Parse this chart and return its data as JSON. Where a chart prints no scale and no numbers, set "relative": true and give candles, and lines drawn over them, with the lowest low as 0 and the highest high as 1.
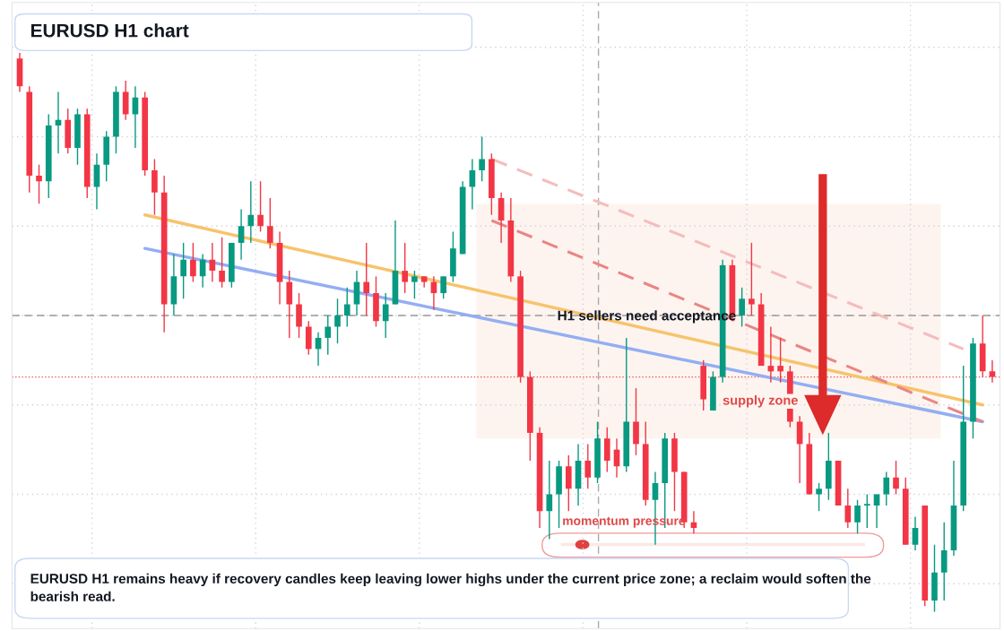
{
  "chart_data": {
    "type": "candlestick",
    "title": "EURUSD H1 chart",
    "relative": true,
    "grid": true,
    "categories": [
      null,
      null,
      null,
      null,
      null,
      null,
      null,
      null,
      null,
      null,
      null,
      null,
      null,
      null,
      null,
      null,
      null,
      null,
      null,
      null,
      null,
      null,
      null,
      null,
      null,
      null,
      null,
      null,
      null,
      null,
      null,
      null,
      null,
      null,
      null,
      null,
      null,
      null,
      null,
      null,
      null,
      null,
      null,
      null,
      null,
      null,
      null,
      null,
      null,
      null,
      null,
      null,
      null,
      null,
      null,
      null,
      null,
      null,
      null,
      null,
      null,
      null,
      null,
      null,
      null,
      null,
      null,
      null,
      null,
      null,
      null,
      null,
      null,
      null,
      null,
      null,
      null,
      null,
      null,
      null,
      null,
      null,
      null,
      null,
      null,
      null,
      null,
      null,
      null,
      null,
      null,
      null,
      null,
      null,
      null,
      null,
      null,
      null,
      null,
      null,
      null,
      null
    ],
    "ohlc": [
      [
        0.99,
        1.0,
        0.93,
        0.94
      ],
      [
        0.93,
        0.94,
        0.75,
        0.78
      ],
      [
        0.78,
        0.8,
        0.73,
        0.77
      ],
      [
        0.77,
        0.89,
        0.74,
        0.87
      ],
      [
        0.87,
        0.93,
        0.82,
        0.88
      ],
      [
        0.88,
        0.9,
        0.82,
        0.83
      ],
      [
        0.83,
        0.9,
        0.8,
        0.89
      ],
      [
        0.89,
        0.9,
        0.74,
        0.76
      ],
      [
        0.76,
        0.82,
        0.72,
        0.8
      ],
      [
        0.8,
        0.86,
        0.77,
        0.85
      ],
      [
        0.85,
        0.94,
        0.82,
        0.93
      ],
      [
        0.93,
        0.95,
        0.88,
        0.89
      ],
      [
        0.89,
        0.94,
        0.83,
        0.92
      ],
      [
        0.92,
        0.93,
        0.78,
        0.79
      ],
      [
        0.79,
        0.81,
        0.71,
        0.75
      ],
      [
        0.75,
        0.78,
        0.5,
        0.55
      ],
      [
        0.55,
        0.64,
        0.53,
        0.6
      ],
      [
        0.6,
        0.66,
        0.56,
        0.63
      ],
      [
        0.63,
        0.66,
        0.59,
        0.6
      ],
      [
        0.6,
        0.64,
        0.58,
        0.63
      ],
      [
        0.63,
        0.66,
        0.59,
        0.61
      ],
      [
        0.61,
        0.67,
        0.58,
        0.59
      ],
      [
        0.59,
        0.66,
        0.58,
        0.66
      ],
      [
        0.66,
        0.72,
        0.63,
        0.69
      ],
      [
        0.69,
        0.77,
        0.66,
        0.71
      ],
      [
        0.71,
        0.77,
        0.68,
        0.69
      ],
      [
        0.69,
        0.74,
        0.65,
        0.66
      ],
      [
        0.66,
        0.68,
        0.55,
        0.59
      ],
      [
        0.59,
        0.61,
        0.49,
        0.55
      ],
      [
        0.55,
        0.57,
        0.49,
        0.51
      ],
      [
        0.51,
        0.52,
        0.46,
        0.47
      ],
      [
        0.47,
        0.5,
        0.44,
        0.49
      ],
      [
        0.49,
        0.53,
        0.46,
        0.51
      ],
      [
        0.51,
        0.56,
        0.48,
        0.53
      ],
      [
        0.53,
        0.58,
        0.51,
        0.55
      ],
      [
        0.55,
        0.61,
        0.53,
        0.59
      ],
      [
        0.59,
        0.66,
        0.53,
        0.57
      ],
      [
        0.57,
        0.6,
        0.51,
        0.52
      ],
      [
        0.52,
        0.57,
        0.49,
        0.55
      ],
      [
        0.55,
        0.7,
        0.55,
        0.61
      ],
      [
        0.61,
        0.66,
        0.57,
        0.59
      ],
      [
        0.59,
        0.61,
        0.56,
        0.6
      ],
      [
        0.6,
        0.6,
        0.58,
        0.59
      ],
      [
        0.59,
        0.6,
        0.54,
        0.57
      ],
      [
        0.57,
        0.6,
        0.56,
        0.6
      ],
      [
        0.6,
        0.68,
        0.59,
        0.65
      ],
      [
        0.64,
        0.77,
        0.64,
        0.76
      ],
      [
        0.76,
        0.81,
        0.72,
        0.79
      ],
      [
        0.79,
        0.85,
        0.77,
        0.81
      ],
      [
        0.81,
        0.82,
        0.71,
        0.74
      ],
      [
        0.74,
        0.75,
        0.66,
        0.7
      ],
      [
        0.7,
        0.74,
        0.59,
        0.6
      ],
      [
        0.6,
        0.61,
        0.41,
        0.42
      ],
      [
        0.42,
        0.43,
        0.27,
        0.32
      ],
      [
        0.32,
        0.33,
        0.15,
        0.18
      ],
      [
        0.18,
        0.27,
        0.13,
        0.21
      ],
      [
        0.21,
        0.27,
        0.15,
        0.26
      ],
      [
        0.26,
        0.28,
        0.18,
        0.22
      ],
      [
        0.22,
        0.3,
        0.19,
        0.27
      ],
      [
        0.27,
        0.3,
        0.22,
        0.24
      ],
      [
        0.24,
        0.34,
        0.23,
        0.31
      ],
      [
        0.31,
        0.33,
        0.25,
        0.27
      ],
      [
        0.29,
        0.31,
        0.24,
        0.26
      ],
      [
        0.26,
        0.49,
        0.25,
        0.34
      ],
      [
        0.34,
        0.4,
        0.28,
        0.3
      ],
      [
        0.3,
        0.34,
        0.19,
        0.2
      ],
      [
        0.2,
        0.25,
        0.12,
        0.23
      ],
      [
        0.23,
        0.32,
        0.15,
        0.31
      ],
      [
        0.31,
        0.32,
        0.18,
        0.25
      ],
      [
        0.25,
        0.25,
        0.15,
        0.16
      ],
      [
        0.16,
        0.18,
        0.14,
        0.15
      ],
      [
        0.44,
        0.45,
        0.36,
        0.38
      ],
      [
        0.36,
        0.43,
        0.36,
        0.42
      ],
      [
        0.42,
        0.63,
        0.41,
        0.62
      ],
      [
        0.62,
        0.63,
        0.52,
        0.53
      ],
      [
        0.53,
        0.58,
        0.51,
        0.56
      ],
      [
        0.56,
        0.66,
        0.53,
        0.55
      ],
      [
        0.55,
        0.57,
        0.44,
        0.44
      ],
      [
        0.44,
        0.51,
        0.41,
        0.43
      ],
      [
        0.44,
        0.49,
        0.41,
        0.43
      ],
      [
        0.43,
        0.44,
        0.33,
        0.34
      ],
      [
        0.34,
        0.35,
        0.23,
        0.3
      ],
      [
        0.3,
        0.32,
        0.21,
        0.21
      ],
      [
        0.21,
        0.23,
        0.18,
        0.22
      ],
      [
        0.22,
        0.32,
        0.2,
        0.27
      ],
      [
        0.27,
        0.27,
        0.19,
        0.19
      ],
      [
        0.19,
        0.22,
        0.15,
        0.16
      ],
      [
        0.16,
        0.2,
        0.14,
        0.19
      ],
      [
        0.19,
        0.21,
        0.15,
        0.19
      ],
      [
        0.19,
        0.21,
        0.15,
        0.21
      ],
      [
        0.21,
        0.25,
        0.19,
        0.24
      ],
      [
        0.24,
        0.27,
        0.21,
        0.22
      ],
      [
        0.22,
        0.24,
        0.12,
        0.12
      ],
      [
        0.12,
        0.17,
        0.11,
        0.15
      ],
      [
        0.19,
        0.19,
        0.01,
        0.02
      ],
      [
        0.02,
        0.12,
        0.0,
        0.07
      ],
      [
        0.07,
        0.16,
        0.02,
        0.11
      ],
      [
        0.11,
        0.27,
        0.1,
        0.19
      ],
      [
        0.19,
        0.44,
        0.18,
        0.34
      ],
      [
        0.34,
        0.49,
        0.31,
        0.48
      ],
      [
        0.48,
        0.53,
        0.42,
        0.43
      ],
      [
        0.43,
        0.45,
        0.41,
        0.42
      ]
    ],
    "series": [
      {
        "type": "line",
        "values": [
          null,
          null,
          null,
          null,
          null,
          null,
          null,
          null,
          null,
          null,
          null,
          null,
          null,
          0.71,
          null,
          null,
          null,
          null,
          null,
          null,
          null,
          null,
          null,
          null,
          null,
          null,
          null,
          null,
          null,
          null,
          null,
          null,
          null,
          null,
          null,
          null,
          null,
          null,
          null,
          null,
          null,
          null,
          null,
          null,
          null,
          null,
          null,
          null,
          null,
          null,
          null,
          null,
          null,
          null,
          null,
          null,
          null,
          null,
          null,
          null,
          null,
          null,
          null,
          null,
          null,
          null,
          null,
          null,
          null,
          null,
          null,
          null,
          null,
          null,
          null,
          null,
          null,
          null,
          null,
          null,
          null,
          null,
          null,
          null,
          null,
          null,
          null,
          null,
          null,
          null,
          null,
          null,
          null,
          null,
          null,
          null,
          null,
          null,
          null,
          null,
          0.37,
          null
        ],
        "color": "#f7c36b",
        "line_style": "solid"
      },
      {
        "type": "line",
        "values": [
          null,
          null,
          null,
          null,
          null,
          null,
          null,
          null,
          null,
          null,
          null,
          null,
          null,
          0.65,
          null,
          null,
          null,
          null,
          null,
          null,
          null,
          null,
          null,
          null,
          null,
          null,
          null,
          null,
          null,
          null,
          null,
          null,
          null,
          null,
          null,
          null,
          null,
          null,
          null,
          null,
          null,
          null,
          null,
          null,
          null,
          null,
          null,
          null,
          null,
          null,
          null,
          null,
          null,
          null,
          null,
          null,
          null,
          null,
          null,
          null,
          null,
          null,
          null,
          null,
          null,
          null,
          null,
          null,
          null,
          null,
          null,
          null,
          null,
          null,
          null,
          null,
          null,
          null,
          null,
          null,
          null,
          null,
          null,
          null,
          null,
          null,
          null,
          null,
          null,
          null,
          null,
          null,
          null,
          null,
          null,
          null,
          null,
          null,
          null,
          null,
          0.34,
          null
        ],
        "color": "#93aef3",
        "line_style": "solid"
      },
      {
        "type": "line",
        "values": [
          null,
          null,
          null,
          null,
          null,
          null,
          null,
          null,
          null,
          null,
          null,
          null,
          null,
          null,
          null,
          null,
          null,
          null,
          null,
          null,
          null,
          null,
          null,
          null,
          null,
          null,
          null,
          null,
          null,
          null,
          null,
          null,
          null,
          null,
          null,
          null,
          null,
          null,
          null,
          null,
          null,
          null,
          null,
          null,
          null,
          null,
          null,
          null,
          null,
          0.7,
          null,
          null,
          null,
          null,
          null,
          null,
          null,
          null,
          null,
          null,
          null,
          null,
          null,
          null,
          null,
          null,
          null,
          null,
          null,
          null,
          null,
          null,
          null,
          null,
          null,
          null,
          null,
          null,
          null,
          null,
          null,
          null,
          null,
          null,
          null,
          null,
          null,
          null,
          null,
          null,
          null,
          null,
          null,
          null,
          null,
          null,
          null,
          null,
          null,
          null,
          0.34,
          null
        ],
        "color": "#ea8585",
        "line_style": "dashed"
      },
      {
        "type": "line",
        "values": [
          null,
          null,
          null,
          null,
          null,
          null,
          null,
          null,
          null,
          null,
          null,
          null,
          null,
          null,
          null,
          null,
          null,
          null,
          null,
          null,
          null,
          null,
          null,
          null,
          null,
          null,
          null,
          null,
          null,
          null,
          null,
          null,
          null,
          null,
          null,
          null,
          null,
          null,
          null,
          null,
          null,
          null,
          null,
          null,
          null,
          null,
          null,
          null,
          null,
          0.81,
          null,
          null,
          null,
          null,
          null,
          null,
          null,
          null,
          null,
          null,
          null,
          null,
          null,
          null,
          null,
          null,
          null,
          null,
          null,
          null,
          null,
          null,
          null,
          null,
          null,
          null,
          null,
          null,
          null,
          null,
          null,
          null,
          null,
          null,
          null,
          null,
          null,
          null,
          null,
          null,
          null,
          null,
          null,
          null,
          null,
          null,
          null,
          null,
          0.47,
          null,
          null,
          null
        ],
        "color": "#f5bcbc",
        "line_style": "dashed"
      }
    ],
    "ref_lines": [
      {
        "axis": "y",
        "value": 0.53,
        "color": "#999999",
        "line_style": "dashed"
      },
      {
        "axis": "y",
        "value": 0.42,
        "color": "#e05555",
        "line_style": "dotted"
      }
    ],
    "bands": [
      {
        "axis": "y",
        "from": 0.31,
        "to": 0.73,
        "color": "#fdf4ef"
      }
    ],
    "annotations": [
      "H1 sellers need acceptance",
      "supply zone",
      "momentum pressure",
      "EURUSD H1 remains heavy if recovery candles keep leaving lower highs under the current price zone; a reclaim would soften the bearish read."
    ]
  }
}
